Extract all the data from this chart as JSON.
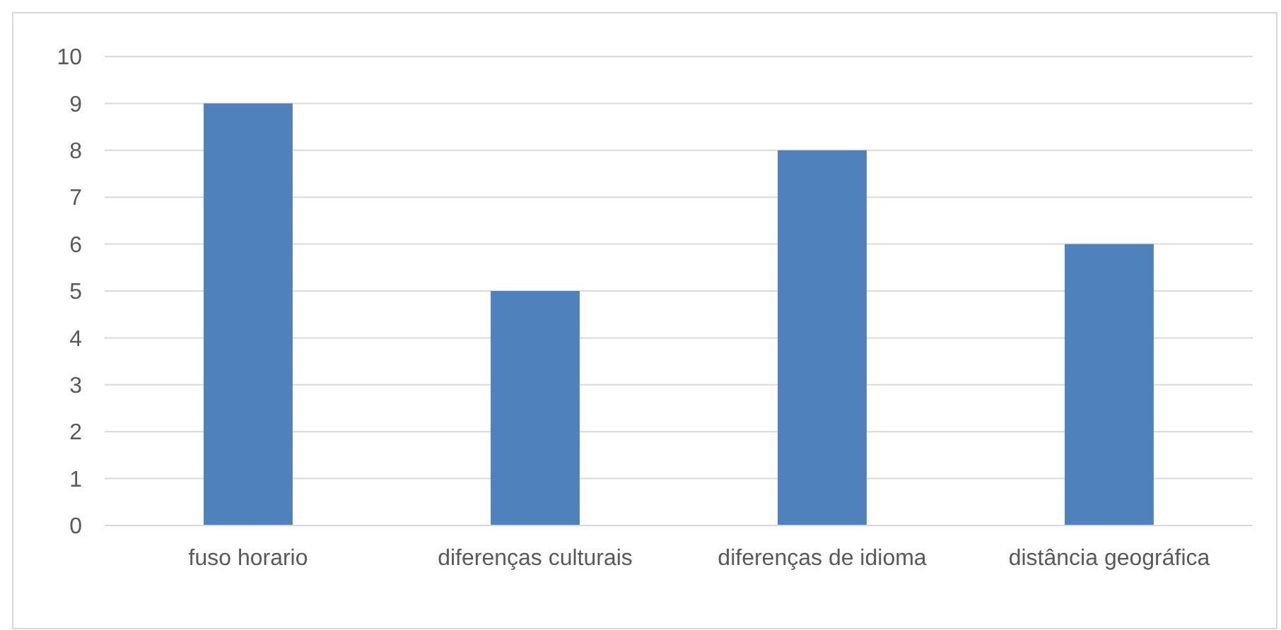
{
  "chart_data": {
    "type": "bar",
    "categories": [
      "fuso horario",
      "diferenças culturais",
      "diferenças de idioma",
      "distância geográfica"
    ],
    "values": [
      9,
      5,
      8,
      6
    ],
    "color": "#4f81bd",
    "ylim": [
      0,
      10
    ],
    "yticks": [
      0,
      1,
      2,
      3,
      4,
      5,
      6,
      7,
      8,
      9,
      10
    ],
    "grid": "y"
  }
}
